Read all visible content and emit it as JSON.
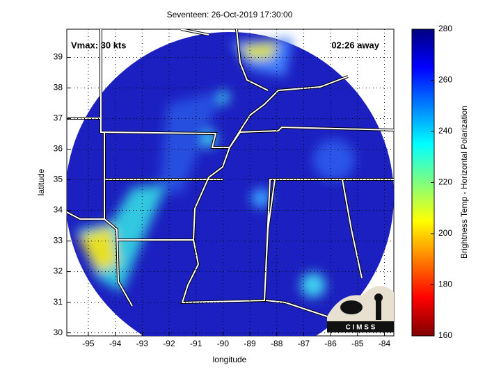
{
  "title": "Seventeen: 26-Oct-2019 17:30:00",
  "annotations": {
    "vmax": "Vmax: 30 kts",
    "time_away": "02:26 away"
  },
  "x_axis": {
    "label": "longitude",
    "lim": [
      -95.8,
      -83.65
    ],
    "ticks": [
      -95,
      -94,
      -93,
      -92,
      -91,
      -90,
      -89,
      -88,
      -87,
      -86,
      -85,
      -84
    ]
  },
  "y_axis": {
    "label": "latitude",
    "lim": [
      29.9,
      39.92
    ],
    "ticks": [
      30,
      31,
      32,
      33,
      34,
      35,
      36,
      37,
      38,
      39
    ]
  },
  "colorbar": {
    "label": "Brightness Temp - Horizontal Polarization",
    "lim": [
      160,
      280
    ],
    "ticks": [
      160,
      180,
      200,
      220,
      240,
      260,
      280
    ]
  },
  "logo": "C I M S S"
}
